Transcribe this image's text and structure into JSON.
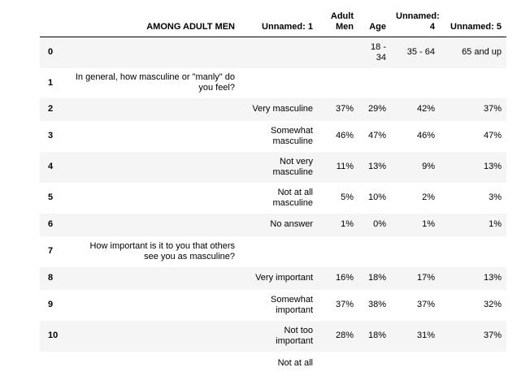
{
  "table": {
    "columns": [
      "",
      "AMONG ADULT MEN",
      "Unnamed: 1",
      "Adult Men",
      "Age",
      "Unnamed: 4",
      "Unnamed: 5"
    ],
    "rows": [
      {
        "index": "0",
        "c0": "",
        "c1": "",
        "c2": "",
        "c3": "18 - 34",
        "c4": "35 - 64",
        "c5": "65 and up"
      },
      {
        "index": "1",
        "c0": "In general, how masculine or \"manly\" do you feel?",
        "c1": "",
        "c2": "",
        "c3": "",
        "c4": "",
        "c5": ""
      },
      {
        "index": "2",
        "c0": "",
        "c1": "Very masculine",
        "c2": "37%",
        "c3": "29%",
        "c4": "42%",
        "c5": "37%"
      },
      {
        "index": "3",
        "c0": "",
        "c1": "Somewhat masculine",
        "c2": "46%",
        "c3": "47%",
        "c4": "46%",
        "c5": "47%"
      },
      {
        "index": "4",
        "c0": "",
        "c1": "Not very masculine",
        "c2": "11%",
        "c3": "13%",
        "c4": "9%",
        "c5": "13%"
      },
      {
        "index": "5",
        "c0": "",
        "c1": "Not at all masculine",
        "c2": "5%",
        "c3": "10%",
        "c4": "2%",
        "c5": "3%"
      },
      {
        "index": "6",
        "c0": "",
        "c1": "No answer",
        "c2": "1%",
        "c3": "0%",
        "c4": "1%",
        "c5": "1%"
      },
      {
        "index": "7",
        "c0": "How important is it to you that others see you as masculine?",
        "c1": "",
        "c2": "",
        "c3": "",
        "c4": "",
        "c5": ""
      },
      {
        "index": "8",
        "c0": "",
        "c1": "Very important",
        "c2": "16%",
        "c3": "18%",
        "c4": "17%",
        "c5": "13%"
      },
      {
        "index": "9",
        "c0": "",
        "c1": "Somewhat important",
        "c2": "37%",
        "c3": "38%",
        "c4": "37%",
        "c5": "32%"
      },
      {
        "index": "10",
        "c0": "",
        "c1": "Not too important",
        "c2": "28%",
        "c3": "18%",
        "c4": "31%",
        "c5": "37%"
      },
      {
        "index": "",
        "c0": "",
        "c1": "Not at all",
        "c2": "",
        "c3": "",
        "c4": "",
        "c5": ""
      }
    ]
  }
}
